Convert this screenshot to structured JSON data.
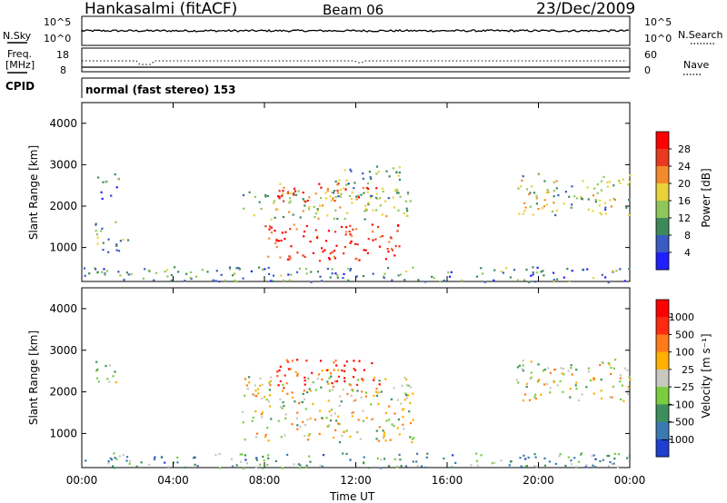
{
  "header": {
    "title": "Hankasalmi (fitACF)",
    "beam": "Beam 06",
    "date": "23/Dec/2009"
  },
  "top_panel": {
    "left_label": "N.Sky",
    "left_ticks": [
      "10^5",
      "10^0"
    ],
    "right_label": "N.Search",
    "right_ticks": [
      "10^5",
      "10^0"
    ]
  },
  "freq_panel": {
    "left_label_line1": "Freq.",
    "left_label_line2": "[MHz]",
    "left_ticks": [
      "18",
      "8"
    ],
    "right_label": "Nave",
    "right_ticks": [
      "60",
      "0"
    ]
  },
  "cpid": {
    "label": "CPID",
    "text": "normal (fast stereo) 153"
  },
  "chart_data": [
    {
      "type": "heatmap",
      "ylabel": "Slant Range [km]",
      "xlabel": "",
      "xlim": [
        0,
        24
      ],
      "ylim": [
        180,
        4500
      ],
      "yticks": [
        "1000",
        "2000",
        "3000",
        "4000"
      ],
      "xticks": [
        "00:00",
        "04:00",
        "08:00",
        "12:00",
        "16:00",
        "20:00",
        "00:00"
      ],
      "colorbar": {
        "label": "Power [dB]",
        "ticks": [
          "4",
          "8",
          "12",
          "16",
          "20",
          "24",
          "28"
        ],
        "colors": [
          "#1f1fff",
          "#3a5bc2",
          "#3c8a5a",
          "#8fc65a",
          "#e9d23a",
          "#f28a2b",
          "#e83a1e",
          "#ff0000"
        ]
      },
      "echo_regions": [
        {
          "x": [
            0.5,
            1.6
          ],
          "y": [
            2200,
            2800
          ],
          "level": 0.3
        },
        {
          "x": [
            0.5,
            2.0
          ],
          "y": [
            900,
            1650
          ],
          "level": 0.35
        },
        {
          "x": [
            7.0,
            14.5
          ],
          "y": [
            1700,
            2400
          ],
          "level": 0.45
        },
        {
          "x": [
            8.5,
            13.0
          ],
          "y": [
            2100,
            2600
          ],
          "level": 0.8
        },
        {
          "x": [
            8.0,
            14.0
          ],
          "y": [
            700,
            1600
          ],
          "level": 0.85
        },
        {
          "x": [
            11.0,
            14.0
          ],
          "y": [
            2200,
            3000
          ],
          "level": 0.4
        },
        {
          "x": [
            19.0,
            24.0
          ],
          "y": [
            1800,
            2800
          ],
          "level": 0.45
        },
        {
          "x": [
            0.0,
            24.0
          ],
          "y": [
            180,
            550
          ],
          "level": 0.3
        }
      ]
    },
    {
      "type": "heatmap",
      "ylabel": "Slant Range [km]",
      "xlabel": "Time UT",
      "xlim": [
        0,
        24
      ],
      "ylim": [
        180,
        4500
      ],
      "yticks": [
        "1000",
        "2000",
        "3000",
        "4000"
      ],
      "xticks": [
        "00:00",
        "04:00",
        "08:00",
        "12:00",
        "16:00",
        "20:00",
        "00:00"
      ],
      "colorbar": {
        "label": "Velocity [m s⁻¹]",
        "ticks": [
          "1000",
          "500",
          "100",
          "25",
          "−25",
          "−100",
          "−500",
          "−1000"
        ],
        "colors": [
          "#1f3fd0",
          "#3b7ab0",
          "#3c8f5c",
          "#7bcc3e",
          "#c8c8c0",
          "#ffb000",
          "#ff7a1a",
          "#ff2a10",
          "#ff0000"
        ]
      },
      "echo_regions": [
        {
          "x": [
            0.5,
            1.6
          ],
          "y": [
            2200,
            2800
          ],
          "level": 0.5
        },
        {
          "x": [
            7.0,
            14.5
          ],
          "y": [
            800,
            2400
          ],
          "level": 0.5
        },
        {
          "x": [
            8.5,
            13.0
          ],
          "y": [
            2100,
            2800
          ],
          "level": 0.85
        },
        {
          "x": [
            19.0,
            24.0
          ],
          "y": [
            1800,
            2800
          ],
          "level": 0.5
        },
        {
          "x": [
            0.0,
            24.0
          ],
          "y": [
            180,
            550
          ],
          "level": 0.3
        }
      ]
    }
  ]
}
